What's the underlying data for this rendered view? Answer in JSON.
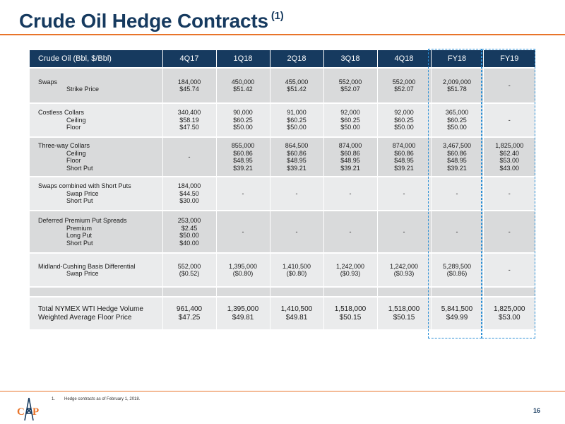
{
  "title": "Crude Oil Hedge Contracts",
  "title_note": "(1)",
  "colors": {
    "title": "#163a5f",
    "header_bg": "#163a5f",
    "accent": "#e8742a",
    "row_dark": "#d9dadb",
    "row_light": "#eaebec",
    "highlight_box": "#2a8fd6"
  },
  "table": {
    "headers": [
      "Crude Oil (Bbl, $/Bbl)",
      "4Q17",
      "1Q18",
      "2Q18",
      "3Q18",
      "4Q18",
      "FY18",
      "FY19"
    ],
    "groups": [
      {
        "label": "Swaps",
        "sublabels": [
          "Strike Price"
        ],
        "cells": [
          [
            "184,000",
            "$45.74"
          ],
          [
            "450,000",
            "$51.42"
          ],
          [
            "455,000",
            "$51.42"
          ],
          [
            "552,000",
            "$52.07"
          ],
          [
            "552,000",
            "$52.07"
          ],
          [
            "2,009,000",
            "$51.78"
          ],
          [
            "-"
          ]
        ]
      },
      {
        "label": "Costless Collars",
        "sublabels": [
          "Ceiling",
          "Floor"
        ],
        "cells": [
          [
            "340,400",
            "$58.19",
            "$47.50"
          ],
          [
            "90,000",
            "$60.25",
            "$50.00"
          ],
          [
            "91,000",
            "$60.25",
            "$50.00"
          ],
          [
            "92,000",
            "$60.25",
            "$50.00"
          ],
          [
            "92,000",
            "$60.25",
            "$50.00"
          ],
          [
            "365,000",
            "$60.25",
            "$50.00"
          ],
          [
            "-"
          ]
        ]
      },
      {
        "label": "Three-way Collars",
        "sublabels": [
          "Ceiling",
          "Floor",
          "Short Put"
        ],
        "cells": [
          [
            "-"
          ],
          [
            "855,000",
            "$60.86",
            "$48.95",
            "$39.21"
          ],
          [
            "864,500",
            "$60.86",
            "$48.95",
            "$39.21"
          ],
          [
            "874,000",
            "$60.86",
            "$48.95",
            "$39.21"
          ],
          [
            "874,000",
            "$60.86",
            "$48.95",
            "$39.21"
          ],
          [
            "3,467,500",
            "$60.86",
            "$48.95",
            "$39.21"
          ],
          [
            "1,825,000",
            "$62.40",
            "$53.00",
            "$43.00"
          ]
        ]
      },
      {
        "label": "Swaps combined with Short Puts",
        "sublabels": [
          "Swap Price",
          "Short Put"
        ],
        "cells": [
          [
            "184,000",
            "$44.50",
            "$30.00"
          ],
          [
            "-"
          ],
          [
            "-"
          ],
          [
            "-"
          ],
          [
            "-"
          ],
          [
            "-"
          ],
          [
            "-"
          ]
        ]
      },
      {
        "label": "Deferred Premium Put Spreads",
        "sublabels": [
          "Premium",
          "Long Put",
          "Short Put"
        ],
        "cells": [
          [
            "253,000",
            "$2.45",
            "$50.00",
            "$40.00"
          ],
          [
            "-"
          ],
          [
            "-"
          ],
          [
            "-"
          ],
          [
            "-"
          ],
          [
            "-"
          ],
          [
            "-"
          ]
        ]
      },
      {
        "label": "Midland-Cushing Basis Differential",
        "sublabels": [
          "Swap Price"
        ],
        "cells": [
          [
            "552,000",
            "($0.52)"
          ],
          [
            "1,395,000",
            "($0.80)"
          ],
          [
            "1,410,500",
            "($0.80)"
          ],
          [
            "1,242,000",
            "($0.93)"
          ],
          [
            "1,242,000",
            "($0.93)"
          ],
          [
            "5,289,500",
            "($0.86)"
          ],
          [
            "-"
          ]
        ]
      }
    ],
    "totals": {
      "labels": [
        "Total NYMEX WTI Hedge Volume",
        "Weighted Average Floor Price"
      ],
      "cells": [
        [
          "961,400",
          "$47.25"
        ],
        [
          "1,395,000",
          "$49.81"
        ],
        [
          "1,410,500",
          "$49.81"
        ],
        [
          "1,518,000",
          "$50.15"
        ],
        [
          "1,518,000",
          "$50.15"
        ],
        [
          "5,841,500",
          "$49.99"
        ],
        [
          "1,825,000",
          "$53.00"
        ]
      ]
    }
  },
  "footnote": {
    "number": "1.",
    "text": "Hedge contracts as of February 1, 2018."
  },
  "page_number": "16",
  "logo": {
    "letters": "CAP",
    "icon": "oil-derrick-logo-icon"
  }
}
